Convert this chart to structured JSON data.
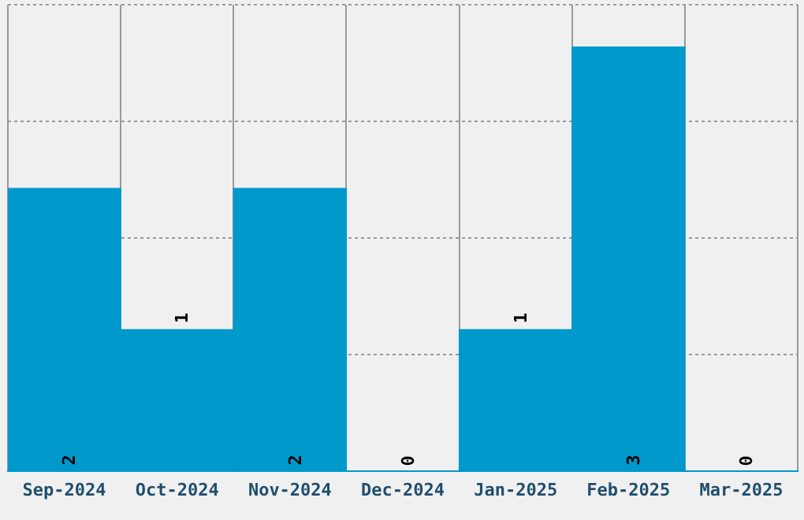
{
  "chart_data": {
    "type": "bar",
    "categories": [
      "Sep-2024",
      "Oct-2024",
      "Nov-2024",
      "Dec-2024",
      "Jan-2025",
      "Feb-2025",
      "Mar-2025"
    ],
    "values": [
      2,
      1,
      2,
      0,
      1,
      3,
      0
    ],
    "color": "#0099cc",
    "data_labels": true,
    "ylim": [
      0,
      3.3
    ],
    "yticks": [
      {
        "value": 0,
        "label": null
      },
      {
        "value": 0.825,
        "label": null
      },
      {
        "value": 1.65,
        "label": null
      },
      {
        "value": 2.475,
        "label": null
      },
      {
        "value": 3.3,
        "label": null
      }
    ],
    "grid": true,
    "tick_labels": "x",
    "legend": false
  }
}
